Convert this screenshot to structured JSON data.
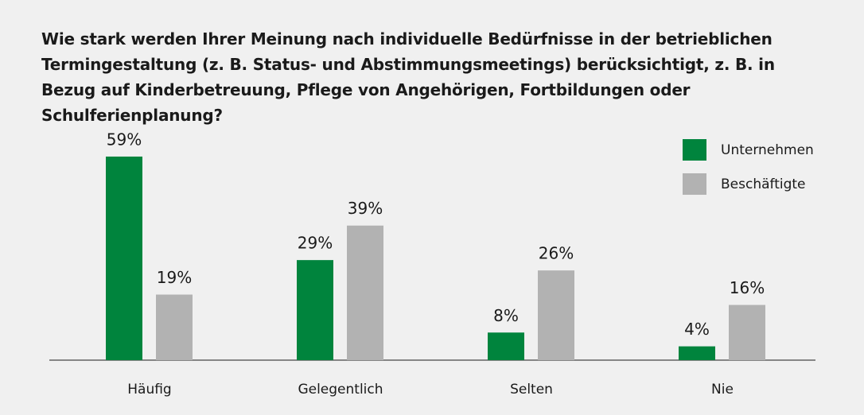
{
  "chart_data": {
    "type": "bar",
    "title": "Wie stark werden Ihrer Meinung nach individuelle Bedürfnisse in der betrieblichen Termingestaltung (z. B. Status- und Abstimmungsmeetings) berücksichtigt, z. B. in Bezug auf Kinderbetreuung, Pflege von Angehörigen, Fortbildungen oder Schulferienplanung?",
    "categories": [
      "Häufig",
      "Gelegentlich",
      "Selten",
      "Nie"
    ],
    "series": [
      {
        "name": "Unternehmen",
        "color": "#00843d",
        "values": [
          59,
          29,
          8,
          4
        ],
        "value_labels": [
          "59%",
          "29%",
          "8%",
          "4%"
        ]
      },
      {
        "name": "Beschäftigte",
        "color": "#b2b2b2",
        "values": [
          19,
          39,
          26,
          16
        ],
        "value_labels": [
          "19%",
          "39%",
          "26%",
          "16%"
        ]
      }
    ],
    "legend": "top-right"
  }
}
